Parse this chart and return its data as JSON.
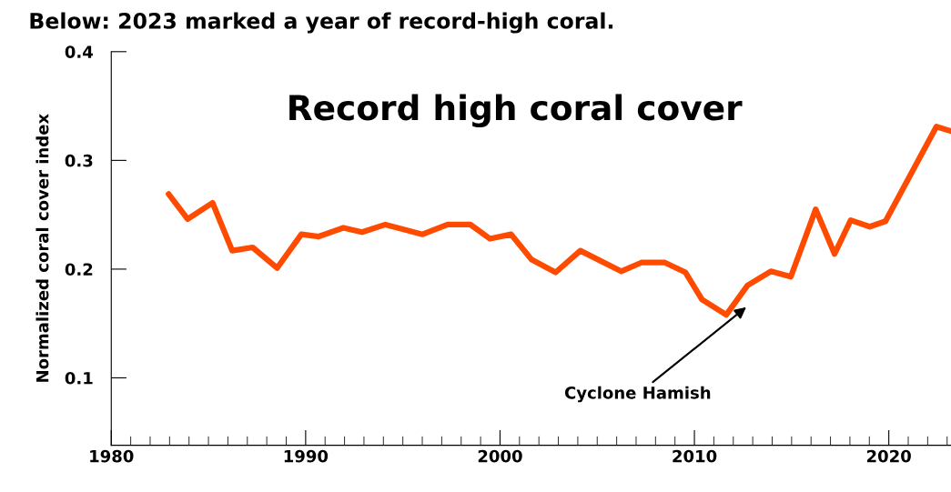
{
  "chart_data": {
    "type": "line",
    "title": "Below: 2023 marked a year of record-high coral.",
    "ylabel": "Normalized coral cover index",
    "annotations": [
      "Record high coral cover",
      "Cyclone Hamish"
    ],
    "x": [
      1982.95,
      1983.93,
      1985.21,
      1986.22,
      1987.27,
      1988.53,
      1989.78,
      1990.67,
      1991.94,
      1992.9,
      1994.1,
      1996.01,
      1997.3,
      1998.47,
      1999.48,
      2000.57,
      2001.61,
      2002.86,
      2004.13,
      2006.23,
      2007.27,
      2008.48,
      2009.54,
      2010.39,
      2011.64,
      2012.73,
      2013.93,
      2014.96,
      2016.24,
      2017.21,
      2018.04,
      2019.02,
      2019.83,
      2022.45,
      2023.18
    ],
    "series": [
      {
        "color": "#ff4b00",
        "values": [
          0.269,
          0.246,
          0.261,
          0.217,
          0.22,
          0.201,
          0.232,
          0.23,
          0.238,
          0.234,
          0.241,
          0.232,
          0.241,
          0.241,
          0.228,
          0.232,
          0.209,
          0.197,
          0.217,
          0.198,
          0.206,
          0.206,
          0.197,
          0.172,
          0.158,
          0.185,
          0.198,
          0.193,
          0.255,
          0.214,
          0.245,
          0.239,
          0.244,
          0.331,
          0.327
        ]
      }
    ],
    "xlim": [
      1980,
      2023.2
    ],
    "xticks": [
      1980,
      1990,
      2000,
      2010,
      2020
    ],
    "ylim": [
      0.038,
      0.4
    ],
    "yticks": [
      {
        "value": 0.1,
        "label": "0.1"
      },
      {
        "value": 0.2,
        "label": "0.2"
      },
      {
        "value": 0.3,
        "label": "0.3"
      },
      {
        "value": 0.4,
        "label": "0.4"
      }
    ],
    "grid": false,
    "legend": false,
    "marker": "none",
    "line_style": "solid"
  }
}
